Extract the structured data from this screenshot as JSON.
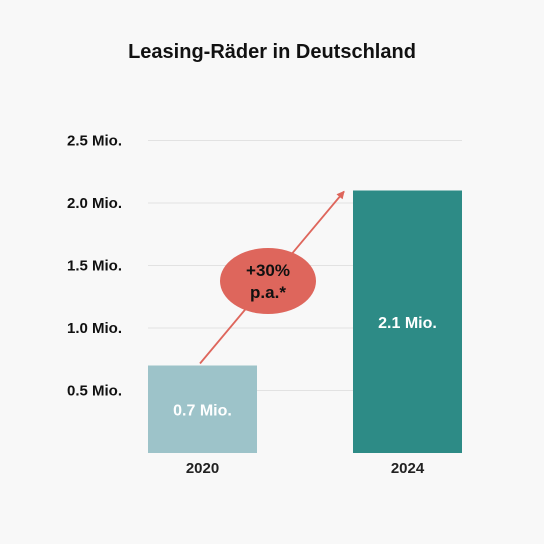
{
  "chart_data": {
    "type": "bar",
    "title": "Leasing-Räder in Deutschland",
    "xlabel": "",
    "ylabel": "",
    "categories": [
      "2020",
      "2024"
    ],
    "values": [
      0.7,
      2.1
    ],
    "data_labels": [
      "0.7 Mio.",
      "2.1 Mio."
    ],
    "bar_colors": [
      "#9dc3c9",
      "#2d8b86"
    ],
    "ylim": [
      0,
      2.5
    ],
    "yticks": [
      {
        "value": 0.5,
        "label": "0.5 Mio."
      },
      {
        "value": 1.0,
        "label": "1.0  Mio."
      },
      {
        "value": 1.5,
        "label": "1.5  Mio."
      },
      {
        "value": 2.0,
        "label": "2.0  Mio."
      },
      {
        "value": 2.5,
        "label": "2.5 Mio."
      }
    ],
    "grid": true,
    "annotation": {
      "line1": "+30%",
      "line2": "p.a.*",
      "color": "#de665c"
    }
  }
}
